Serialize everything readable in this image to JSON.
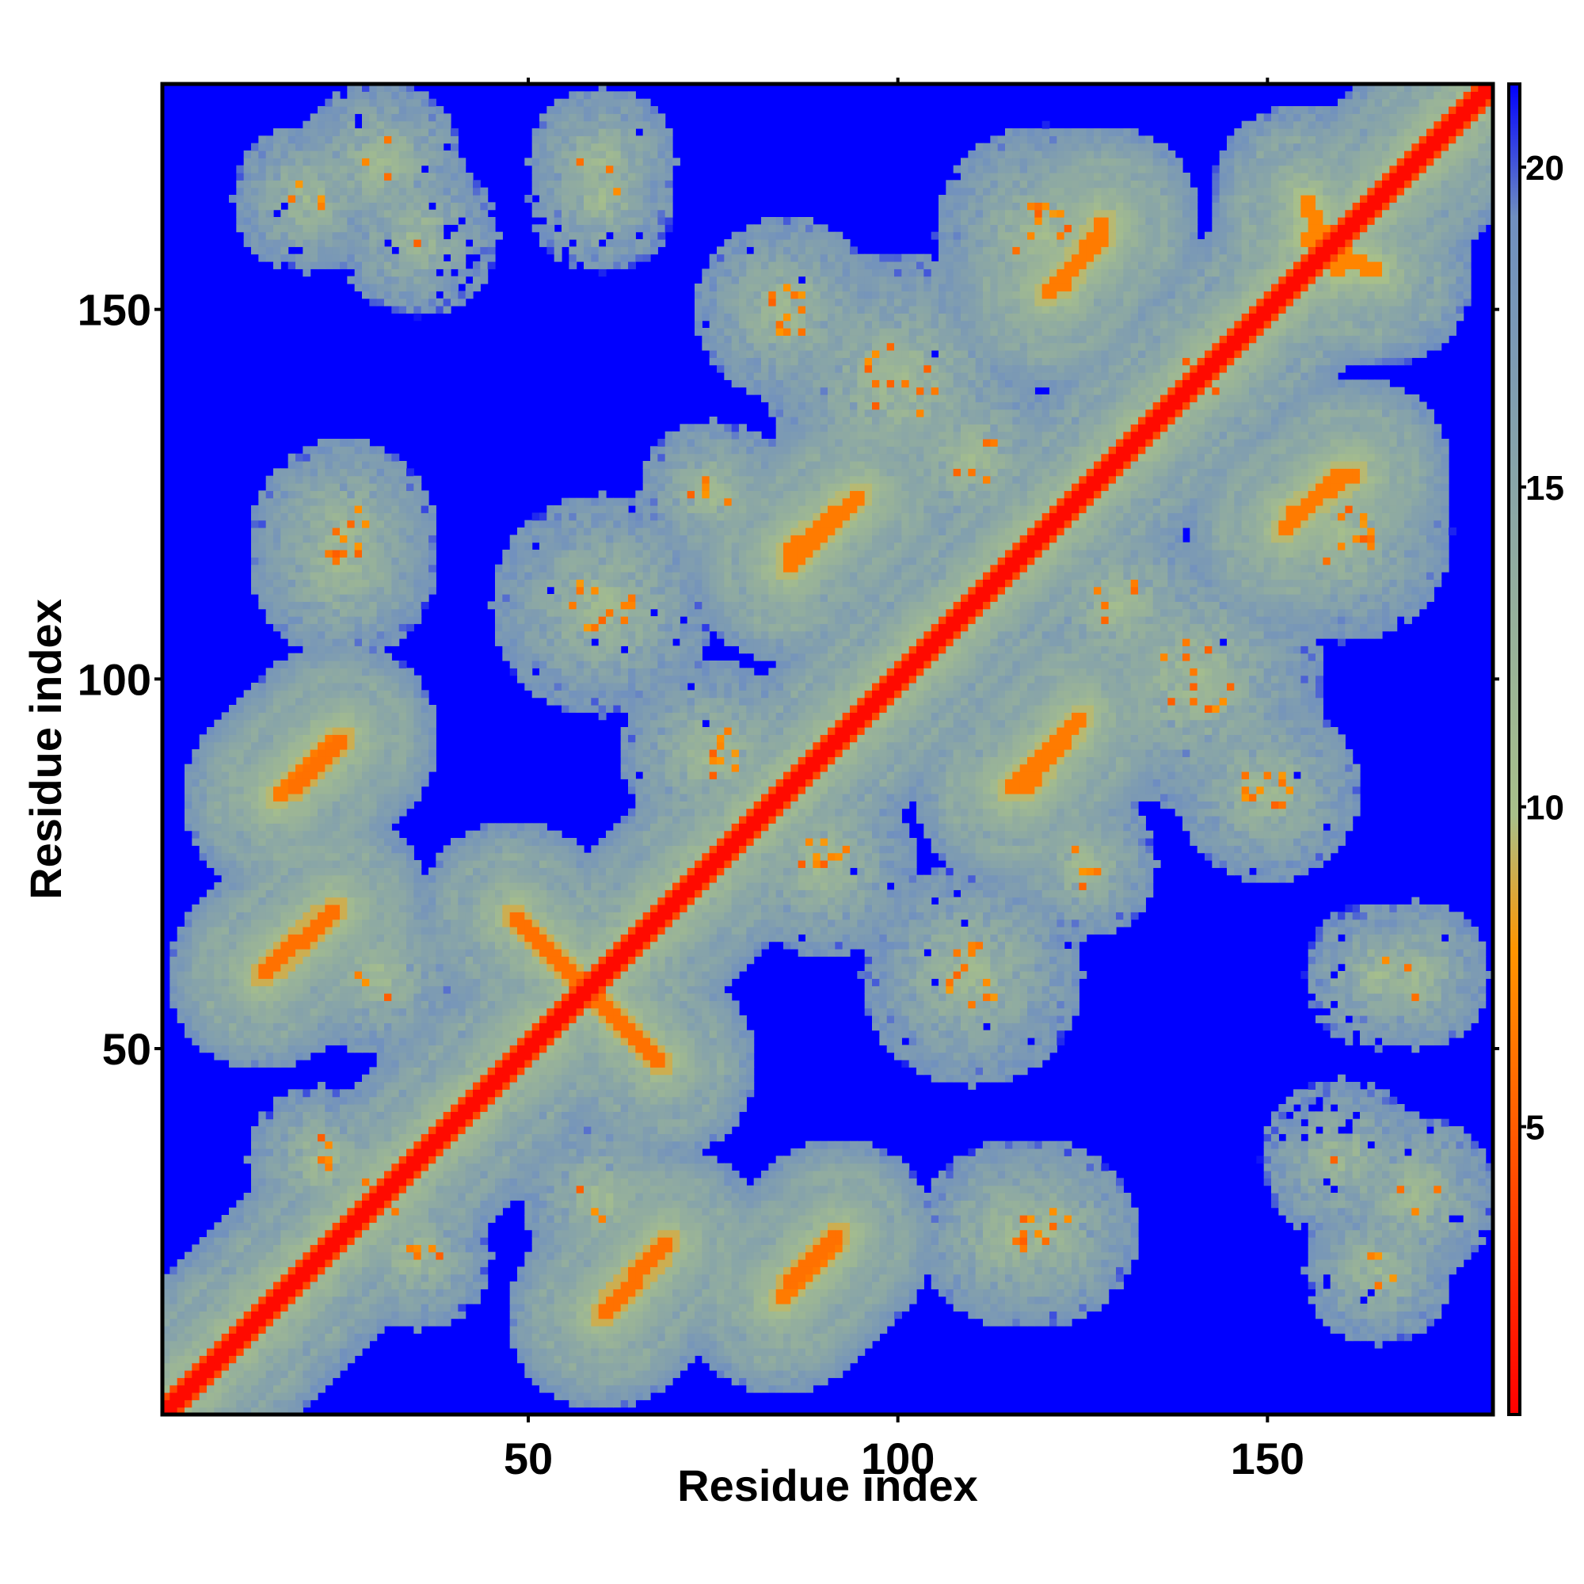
{
  "chart_data": {
    "type": "heatmap",
    "title": "",
    "xlabel": "Residue index",
    "ylabel": "Residue index",
    "xlim": [
      1,
      180
    ],
    "ylim": [
      1,
      180
    ],
    "x_ticks": [
      "50",
      "100",
      "150"
    ],
    "x_tick_values": [
      50,
      100,
      150
    ],
    "y_ticks": [
      "50",
      "100",
      "150"
    ],
    "y_tick_values": [
      50,
      100,
      150
    ],
    "grid": false,
    "colorbar": {
      "ticks": [
        "5",
        "10",
        "15",
        "20"
      ],
      "tick_values": [
        5,
        10,
        15,
        20
      ],
      "range": [
        0.5,
        21.3
      ],
      "colors": [
        "#ff0000",
        "#ff9500",
        "#a8c08a",
        "#6f8fc0",
        "#0000ff"
      ],
      "stops": [
        0,
        0.35,
        0.45,
        0.9,
        1.0
      ]
    },
    "contact_map": {
      "n_residues": 180,
      "far_value": 21.3,
      "contact_bands": [
        {
          "name": "diagonal",
          "start": [
            1,
            1
          ],
          "end": [
            180,
            180
          ],
          "value": 1.0
        },
        {
          "name": "cross-arm-1",
          "start": [
            48,
            68
          ],
          "end": [
            68,
            48
          ],
          "value": 6.0
        },
        {
          "name": "anti-parallel-sheet-1",
          "start": [
            14,
            60
          ],
          "end": [
            23,
            68
          ],
          "value": 6.0
        },
        {
          "name": "anti-parallel-sheet-2",
          "start": [
            60,
            14
          ],
          "end": [
            68,
            23
          ],
          "value": 6.0
        },
        {
          "name": "anti-parallel-sheet-3",
          "start": [
            18,
            85
          ],
          "end": [
            25,
            92
          ],
          "value": 6.0
        },
        {
          "name": "anti-parallel-sheet-4",
          "start": [
            85,
            18
          ],
          "end": [
            92,
            25
          ],
          "value": 6.0
        },
        {
          "name": "helix-pair-1",
          "start": [
            85,
            115
          ],
          "end": [
            93,
            123
          ],
          "value": 6.5
        },
        {
          "name": "helix-pair-2",
          "start": [
            115,
            85
          ],
          "end": [
            123,
            93
          ],
          "value": 6.5
        },
        {
          "name": "helix-pair-3",
          "start": [
            117,
            85
          ],
          "end": [
            125,
            95
          ],
          "value": 6.5
        },
        {
          "name": "helix-pair-4",
          "start": [
            85,
            117
          ],
          "end": [
            95,
            125
          ],
          "value": 6.5
        },
        {
          "name": "helix-pair-5",
          "start": [
            122,
            153
          ],
          "end": [
            128,
            162
          ],
          "value": 6.5
        },
        {
          "name": "helix-pair-6",
          "start": [
            153,
            122
          ],
          "end": [
            162,
            128
          ],
          "value": 6.5
        },
        {
          "name": "helix-pair-7",
          "start": [
            152,
            120
          ],
          "end": [
            160,
            128
          ],
          "value": 6.5
        },
        {
          "name": "helix-pair-8",
          "start": [
            120,
            152
          ],
          "end": [
            128,
            160
          ],
          "value": 6.5
        },
        {
          "name": "strand-pair-1",
          "start": [
            62,
            16
          ],
          "end": [
            69,
            24
          ],
          "value": 6.0
        },
        {
          "name": "strand-pair-2",
          "start": [
            16,
            62
          ],
          "end": [
            24,
            69
          ],
          "value": 6.0
        },
        {
          "name": "strand-pair-3",
          "start": [
            84,
            16
          ],
          "end": [
            92,
            24
          ],
          "value": 6.5
        },
        {
          "name": "strand-pair-4",
          "start": [
            16,
            84
          ],
          "end": [
            24,
            92
          ],
          "value": 6.5
        },
        {
          "name": "strand-pair-5",
          "start": [
            155,
            160
          ],
          "end": [
            165,
            155
          ],
          "value": 7.0
        }
      ],
      "contact_clusters": [
        {
          "center": [
            30,
            30
          ],
          "size": 22
        },
        {
          "center": [
            22,
            35
          ],
          "size": 20
        },
        {
          "center": [
            35,
            22
          ],
          "size": 20
        },
        {
          "center": [
            60,
            30
          ],
          "size": 22
        },
        {
          "center": [
            30,
            60
          ],
          "size": 22
        },
        {
          "center": [
            25,
            120
          ],
          "size": 25
        },
        {
          "center": [
            120,
            25
          ],
          "size": 25
        },
        {
          "center": [
            30,
            170
          ],
          "size": 22
        },
        {
          "center": [
            170,
            30
          ],
          "size": 22
        },
        {
          "center": [
            60,
            170
          ],
          "size": 20
        },
        {
          "center": [
            170,
            60
          ],
          "size": 20
        },
        {
          "center": [
            90,
            75
          ],
          "size": 25
        },
        {
          "center": [
            75,
            90
          ],
          "size": 25
        },
        {
          "center": [
            110,
            60
          ],
          "size": 30
        },
        {
          "center": [
            60,
            110
          ],
          "size": 30
        },
        {
          "center": [
            100,
            140
          ],
          "size": 35
        },
        {
          "center": [
            140,
            100
          ],
          "size": 35
        },
        {
          "center": [
            115,
            25
          ],
          "size": 25
        },
        {
          "center": [
            25,
            115
          ],
          "size": 25
        },
        {
          "center": [
            160,
            120
          ],
          "size": 30
        },
        {
          "center": [
            120,
            160
          ],
          "size": 30
        },
        {
          "center": [
            165,
            20
          ],
          "size": 20
        },
        {
          "center": [
            20,
            165
          ],
          "size": 20
        },
        {
          "center": [
            165,
            60
          ],
          "size": 20
        },
        {
          "center": [
            160,
            35
          ],
          "size": 22
        },
        {
          "center": [
            140,
            140
          ],
          "size": 25
        },
        {
          "center": [
            130,
            110
          ],
          "size": 25
        },
        {
          "center": [
            110,
            130
          ],
          "size": 25
        },
        {
          "center": [
            95,
            95
          ],
          "size": 20
        },
        {
          "center": [
            125,
            75
          ],
          "size": 20
        },
        {
          "center": [
            75,
            125
          ],
          "size": 20
        },
        {
          "center": [
            150,
            85
          ],
          "size": 25
        },
        {
          "center": [
            85,
            150
          ],
          "size": 25
        }
      ]
    }
  }
}
